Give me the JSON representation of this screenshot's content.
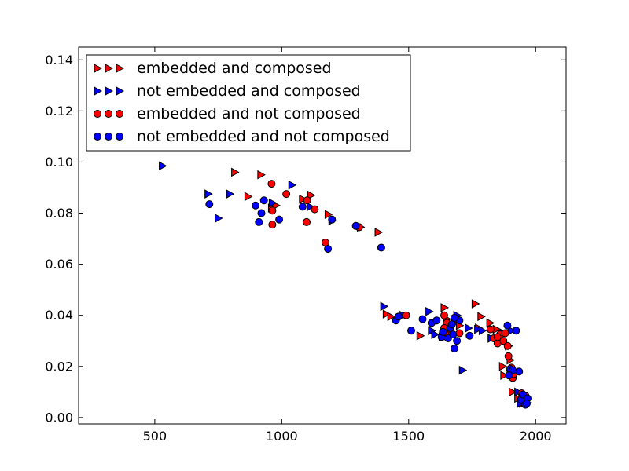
{
  "chart_data": {
    "type": "scatter",
    "title": "",
    "xlabel": "",
    "ylabel": "",
    "xlim": [
      200,
      2120
    ],
    "ylim": [
      -0.0025,
      0.145
    ],
    "x_ticks": [
      500,
      1000,
      1500,
      2000
    ],
    "x_tick_labels": [
      "500",
      "1000",
      "1500",
      "2000"
    ],
    "y_ticks": [
      0.0,
      0.02,
      0.04,
      0.06,
      0.08,
      0.1,
      0.12,
      0.14
    ],
    "y_tick_labels": [
      "0.00",
      "0.02",
      "0.04",
      "0.06",
      "0.08",
      "0.10",
      "0.12",
      "0.14"
    ],
    "grid": false,
    "legend_position": "top-left",
    "series": [
      {
        "name": "embedded and composed",
        "marker": "triangle-right",
        "color": "#ff0000",
        "points": [
          [
            815,
            0.096
          ],
          [
            918,
            0.095
          ],
          [
            867,
            0.0865
          ],
          [
            960,
            0.082
          ],
          [
            977,
            0.083
          ],
          [
            1082,
            0.0855
          ],
          [
            1115,
            0.087
          ],
          [
            1183,
            0.0795
          ],
          [
            1310,
            0.0745
          ],
          [
            1380,
            0.0725
          ],
          [
            1412,
            0.0405
          ],
          [
            1430,
            0.0395
          ],
          [
            1545,
            0.032
          ],
          [
            1640,
            0.043
          ],
          [
            1650,
            0.0385
          ],
          [
            1680,
            0.037
          ],
          [
            1762,
            0.0445
          ],
          [
            1775,
            0.035
          ],
          [
            1785,
            0.0395
          ],
          [
            1820,
            0.037
          ],
          [
            1845,
            0.0345
          ],
          [
            1865,
            0.0335
          ],
          [
            1870,
            0.02
          ],
          [
            1893,
            0.028
          ],
          [
            1900,
            0.0225
          ],
          [
            1908,
            0.01
          ],
          [
            1915,
            0.018
          ],
          [
            1930,
            0.0075
          ],
          [
            1950,
            0.0055
          ],
          [
            1958,
            0.006
          ],
          [
            1632,
            0.0315
          ],
          [
            1700,
            0.036
          ],
          [
            1875,
            0.0165
          ],
          [
            1965,
            0.0058
          ]
        ]
      },
      {
        "name": "not embedded and composed",
        "marker": "triangle-right",
        "color": "#0000ff",
        "points": [
          [
            530,
            0.0985
          ],
          [
            710,
            0.0875
          ],
          [
            750,
            0.078
          ],
          [
            795,
            0.0875
          ],
          [
            963,
            0.084
          ],
          [
            1040,
            0.091
          ],
          [
            1112,
            0.0825
          ],
          [
            1198,
            0.077
          ],
          [
            1402,
            0.0435
          ],
          [
            1478,
            0.04
          ],
          [
            1580,
            0.0415
          ],
          [
            1590,
            0.034
          ],
          [
            1655,
            0.0355
          ],
          [
            1712,
            0.0185
          ],
          [
            1735,
            0.035
          ],
          [
            1772,
            0.0345
          ],
          [
            1790,
            0.034
          ],
          [
            1825,
            0.031
          ],
          [
            1905,
            0.034
          ],
          [
            1930,
            0.01
          ],
          [
            1940,
            0.0055
          ],
          [
            1955,
            0.008
          ],
          [
            1603,
            0.0325
          ],
          [
            1690,
            0.04
          ],
          [
            1870,
            0.033
          ]
        ]
      },
      {
        "name": "embedded and not composed",
        "marker": "circle",
        "color": "#ff0000",
        "points": [
          [
            960,
            0.0915
          ],
          [
            963,
            0.081
          ],
          [
            963,
            0.0755
          ],
          [
            1018,
            0.0875
          ],
          [
            1100,
            0.085
          ],
          [
            1098,
            0.0765
          ],
          [
            1130,
            0.0815
          ],
          [
            1172,
            0.0685
          ],
          [
            1305,
            0.0745
          ],
          [
            1490,
            0.04
          ],
          [
            1640,
            0.04
          ],
          [
            1650,
            0.037
          ],
          [
            1660,
            0.0345
          ],
          [
            1690,
            0.0385
          ],
          [
            1700,
            0.033
          ],
          [
            1822,
            0.0345
          ],
          [
            1835,
            0.031
          ],
          [
            1850,
            0.029
          ],
          [
            1860,
            0.0325
          ],
          [
            1873,
            0.03
          ],
          [
            1880,
            0.033
          ],
          [
            1890,
            0.028
          ],
          [
            1893,
            0.024
          ],
          [
            1900,
            0.0185
          ],
          [
            1905,
            0.0195
          ],
          [
            1910,
            0.0155
          ],
          [
            1945,
            0.0095
          ],
          [
            1950,
            0.0075
          ],
          [
            1955,
            0.006
          ],
          [
            1640,
            0.035
          ],
          [
            1645,
            0.0325
          ],
          [
            1850,
            0.0315
          ],
          [
            1913,
            0.017
          ],
          [
            1960,
            0.0085
          ]
        ]
      },
      {
        "name": "not embedded and not composed",
        "marker": "circle",
        "color": "#0000ff",
        "points": [
          [
            715,
            0.0835
          ],
          [
            897,
            0.083
          ],
          [
            910,
            0.0765
          ],
          [
            920,
            0.08
          ],
          [
            930,
            0.085
          ],
          [
            990,
            0.0775
          ],
          [
            1082,
            0.0825
          ],
          [
            1182,
            0.066
          ],
          [
            1198,
            0.0775
          ],
          [
            1292,
            0.075
          ],
          [
            1392,
            0.0665
          ],
          [
            1450,
            0.038
          ],
          [
            1460,
            0.0395
          ],
          [
            1510,
            0.034
          ],
          [
            1555,
            0.0385
          ],
          [
            1590,
            0.037
          ],
          [
            1610,
            0.038
          ],
          [
            1630,
            0.0315
          ],
          [
            1655,
            0.031
          ],
          [
            1663,
            0.035
          ],
          [
            1670,
            0.0365
          ],
          [
            1675,
            0.0325
          ],
          [
            1680,
            0.027
          ],
          [
            1690,
            0.03
          ],
          [
            1700,
            0.038
          ],
          [
            1740,
            0.032
          ],
          [
            1889,
            0.036
          ],
          [
            1900,
            0.019
          ],
          [
            1910,
            0.0185
          ],
          [
            1923,
            0.034
          ],
          [
            1935,
            0.018
          ],
          [
            1942,
            0.007
          ],
          [
            1950,
            0.009
          ],
          [
            1960,
            0.005
          ],
          [
            1968,
            0.0075
          ],
          [
            1965,
            0.0055
          ],
          [
            1635,
            0.0335
          ],
          [
            1680,
            0.039
          ],
          [
            1895,
            0.0165
          ]
        ]
      }
    ]
  }
}
